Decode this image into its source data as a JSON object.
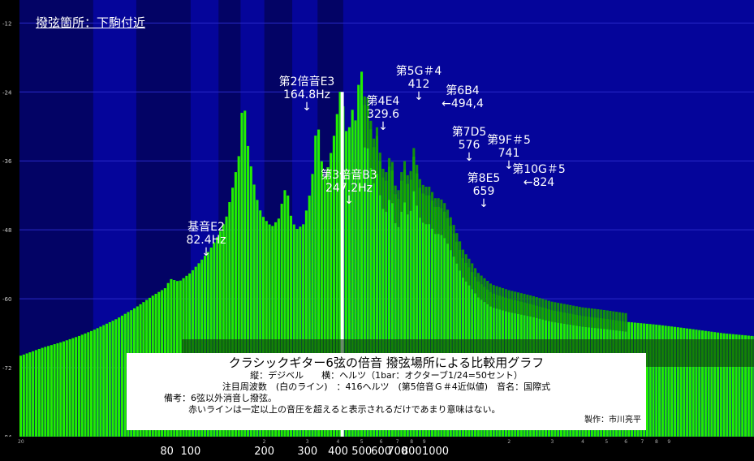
{
  "location_label": "撥弦箇所：下駒付近",
  "info": {
    "title": "クラシックギター6弦の倍音 撥弦場所による比較用グラフ",
    "axes_line": "縦：デジベル　　横：ヘルツ（1bar：オクターブ1/24=50セント）",
    "focus_line": "注目周波数　(白のライン)　：416ヘルツ　(第5倍音Ｇ＃4近似値)　音名：国際式",
    "note_line": "備考：6弦以外消音し撥弦。",
    "red_line_note": "赤いラインは一定以上の音圧を超えると表示されるだけであまり意味はない。",
    "credit": "製作：市川亮平"
  },
  "annotations": [
    {
      "name": "fundamental",
      "line1": "基音E2",
      "line2": "82.4Hz",
      "arrow": "↓"
    },
    {
      "name": "harmonic-2",
      "line1": "第2倍音E3",
      "line2": "164.8Hz",
      "arrow": "↓"
    },
    {
      "name": "harmonic-3",
      "line1": "第3倍音B3",
      "line2": "247.2Hz",
      "arrow": "↓"
    },
    {
      "name": "harmonic-4",
      "line1": "第4E4",
      "line2": "329.6",
      "arrow": "↓"
    },
    {
      "name": "harmonic-5",
      "line1": "第5G＃4",
      "line2": "412",
      "arrow": "↓"
    },
    {
      "name": "harmonic-6",
      "line1": "第6B4",
      "line2": "←494,4",
      "arrow": ""
    },
    {
      "name": "harmonic-7",
      "line1": "第7D5",
      "line2": "576",
      "arrow": "↓"
    },
    {
      "name": "harmonic-8",
      "line1": "第8E5",
      "line2": "659",
      "arrow": "↓"
    },
    {
      "name": "harmonic-9",
      "line1": "第9F＃5",
      "line2": "741",
      "arrow": "↓"
    },
    {
      "name": "harmonic-10",
      "line1": "第10G＃5",
      "line2": "←824",
      "arrow": ""
    }
  ],
  "chart_data": {
    "type": "bar",
    "x_scale": "log",
    "xlim": [
      20,
      20000
    ],
    "ylim": [
      -84,
      -8
    ],
    "y_ticks": [
      "-12",
      "-24",
      "-36",
      "-48",
      "-60",
      "-72",
      "-84"
    ],
    "x_major_labels": [
      "80",
      "100",
      "200",
      "300",
      "400",
      "500",
      "600",
      "700",
      "800",
      "1000"
    ],
    "x_minor_labels": [
      "20",
      "2",
      "3",
      "4",
      "5",
      "6",
      "7",
      "8",
      "9",
      "2",
      "3",
      "4",
      "5",
      "6",
      "7",
      "8",
      "9"
    ],
    "bar_resolution": "1/24 octave",
    "highlight_frequency": 416,
    "colors": {
      "bars": "#22ee00",
      "bars_dark": "#14a000",
      "background": "#05059a",
      "highlight": "#ffffff"
    },
    "series": [
      {
        "points": [
          [
            20,
            -70
          ],
          [
            25,
            -68.5
          ],
          [
            30,
            -67.5
          ],
          [
            35,
            -66.5
          ],
          [
            40,
            -65.5
          ],
          [
            50,
            -63.5
          ],
          [
            60,
            -61.5
          ],
          [
            70,
            -59.5
          ],
          [
            80,
            -58
          ],
          [
            82.4,
            -56.5
          ],
          [
            90,
            -57
          ],
          [
            100,
            -55.5
          ],
          [
            110,
            -53.5
          ],
          [
            120,
            -51.5
          ],
          [
            130,
            -49
          ],
          [
            140,
            -46
          ],
          [
            150,
            -40
          ],
          [
            158,
            -35
          ],
          [
            164.8,
            -23.5
          ],
          [
            170,
            -32
          ],
          [
            180,
            -39
          ],
          [
            190,
            -44
          ],
          [
            200,
            -46
          ],
          [
            215,
            -47.5
          ],
          [
            230,
            -46
          ],
          [
            240,
            -42
          ],
          [
            247.2,
            -40
          ],
          [
            255,
            -45
          ],
          [
            270,
            -48
          ],
          [
            290,
            -47
          ],
          [
            310,
            -41
          ],
          [
            320,
            -36
          ],
          [
            329.6,
            -27
          ],
          [
            340,
            -35
          ],
          [
            355,
            -39
          ],
          [
            370,
            -36
          ],
          [
            385,
            -32
          ],
          [
            400,
            -27
          ],
          [
            412,
            -23
          ],
          [
            425,
            -28
          ],
          [
            440,
            -33
          ],
          [
            455,
            -26
          ],
          [
            470,
            -30
          ],
          [
            485,
            -24
          ],
          [
            494.4,
            -16
          ],
          [
            510,
            -27
          ],
          [
            525,
            -25
          ],
          [
            540,
            -29
          ],
          [
            560,
            -34
          ],
          [
            576,
            -31
          ],
          [
            595,
            -36
          ],
          [
            620,
            -40
          ],
          [
            640,
            -39
          ],
          [
            659,
            -35
          ],
          [
            680,
            -41
          ],
          [
            700,
            -43
          ],
          [
            720,
            -42
          ],
          [
            741,
            -36
          ],
          [
            765,
            -40
          ],
          [
            790,
            -40
          ],
          [
            810,
            -37
          ],
          [
            824,
            -34
          ],
          [
            850,
            -40
          ],
          [
            900,
            -42
          ],
          [
            950,
            -42
          ],
          [
            1000,
            -44
          ],
          [
            1050,
            -44
          ],
          [
            1100,
            -45
          ],
          [
            1200,
            -49
          ],
          [
            1300,
            -53
          ],
          [
            1400,
            -55
          ],
          [
            1500,
            -57
          ],
          [
            1700,
            -59
          ],
          [
            2000,
            -60
          ],
          [
            2500,
            -61
          ],
          [
            3000,
            -62
          ],
          [
            4000,
            -63
          ],
          [
            5000,
            -63.5
          ],
          [
            6000,
            -64
          ],
          [
            8000,
            -64.5
          ],
          [
            10000,
            -65
          ],
          [
            15000,
            -66
          ],
          [
            20000,
            -66.5
          ]
        ]
      }
    ]
  }
}
